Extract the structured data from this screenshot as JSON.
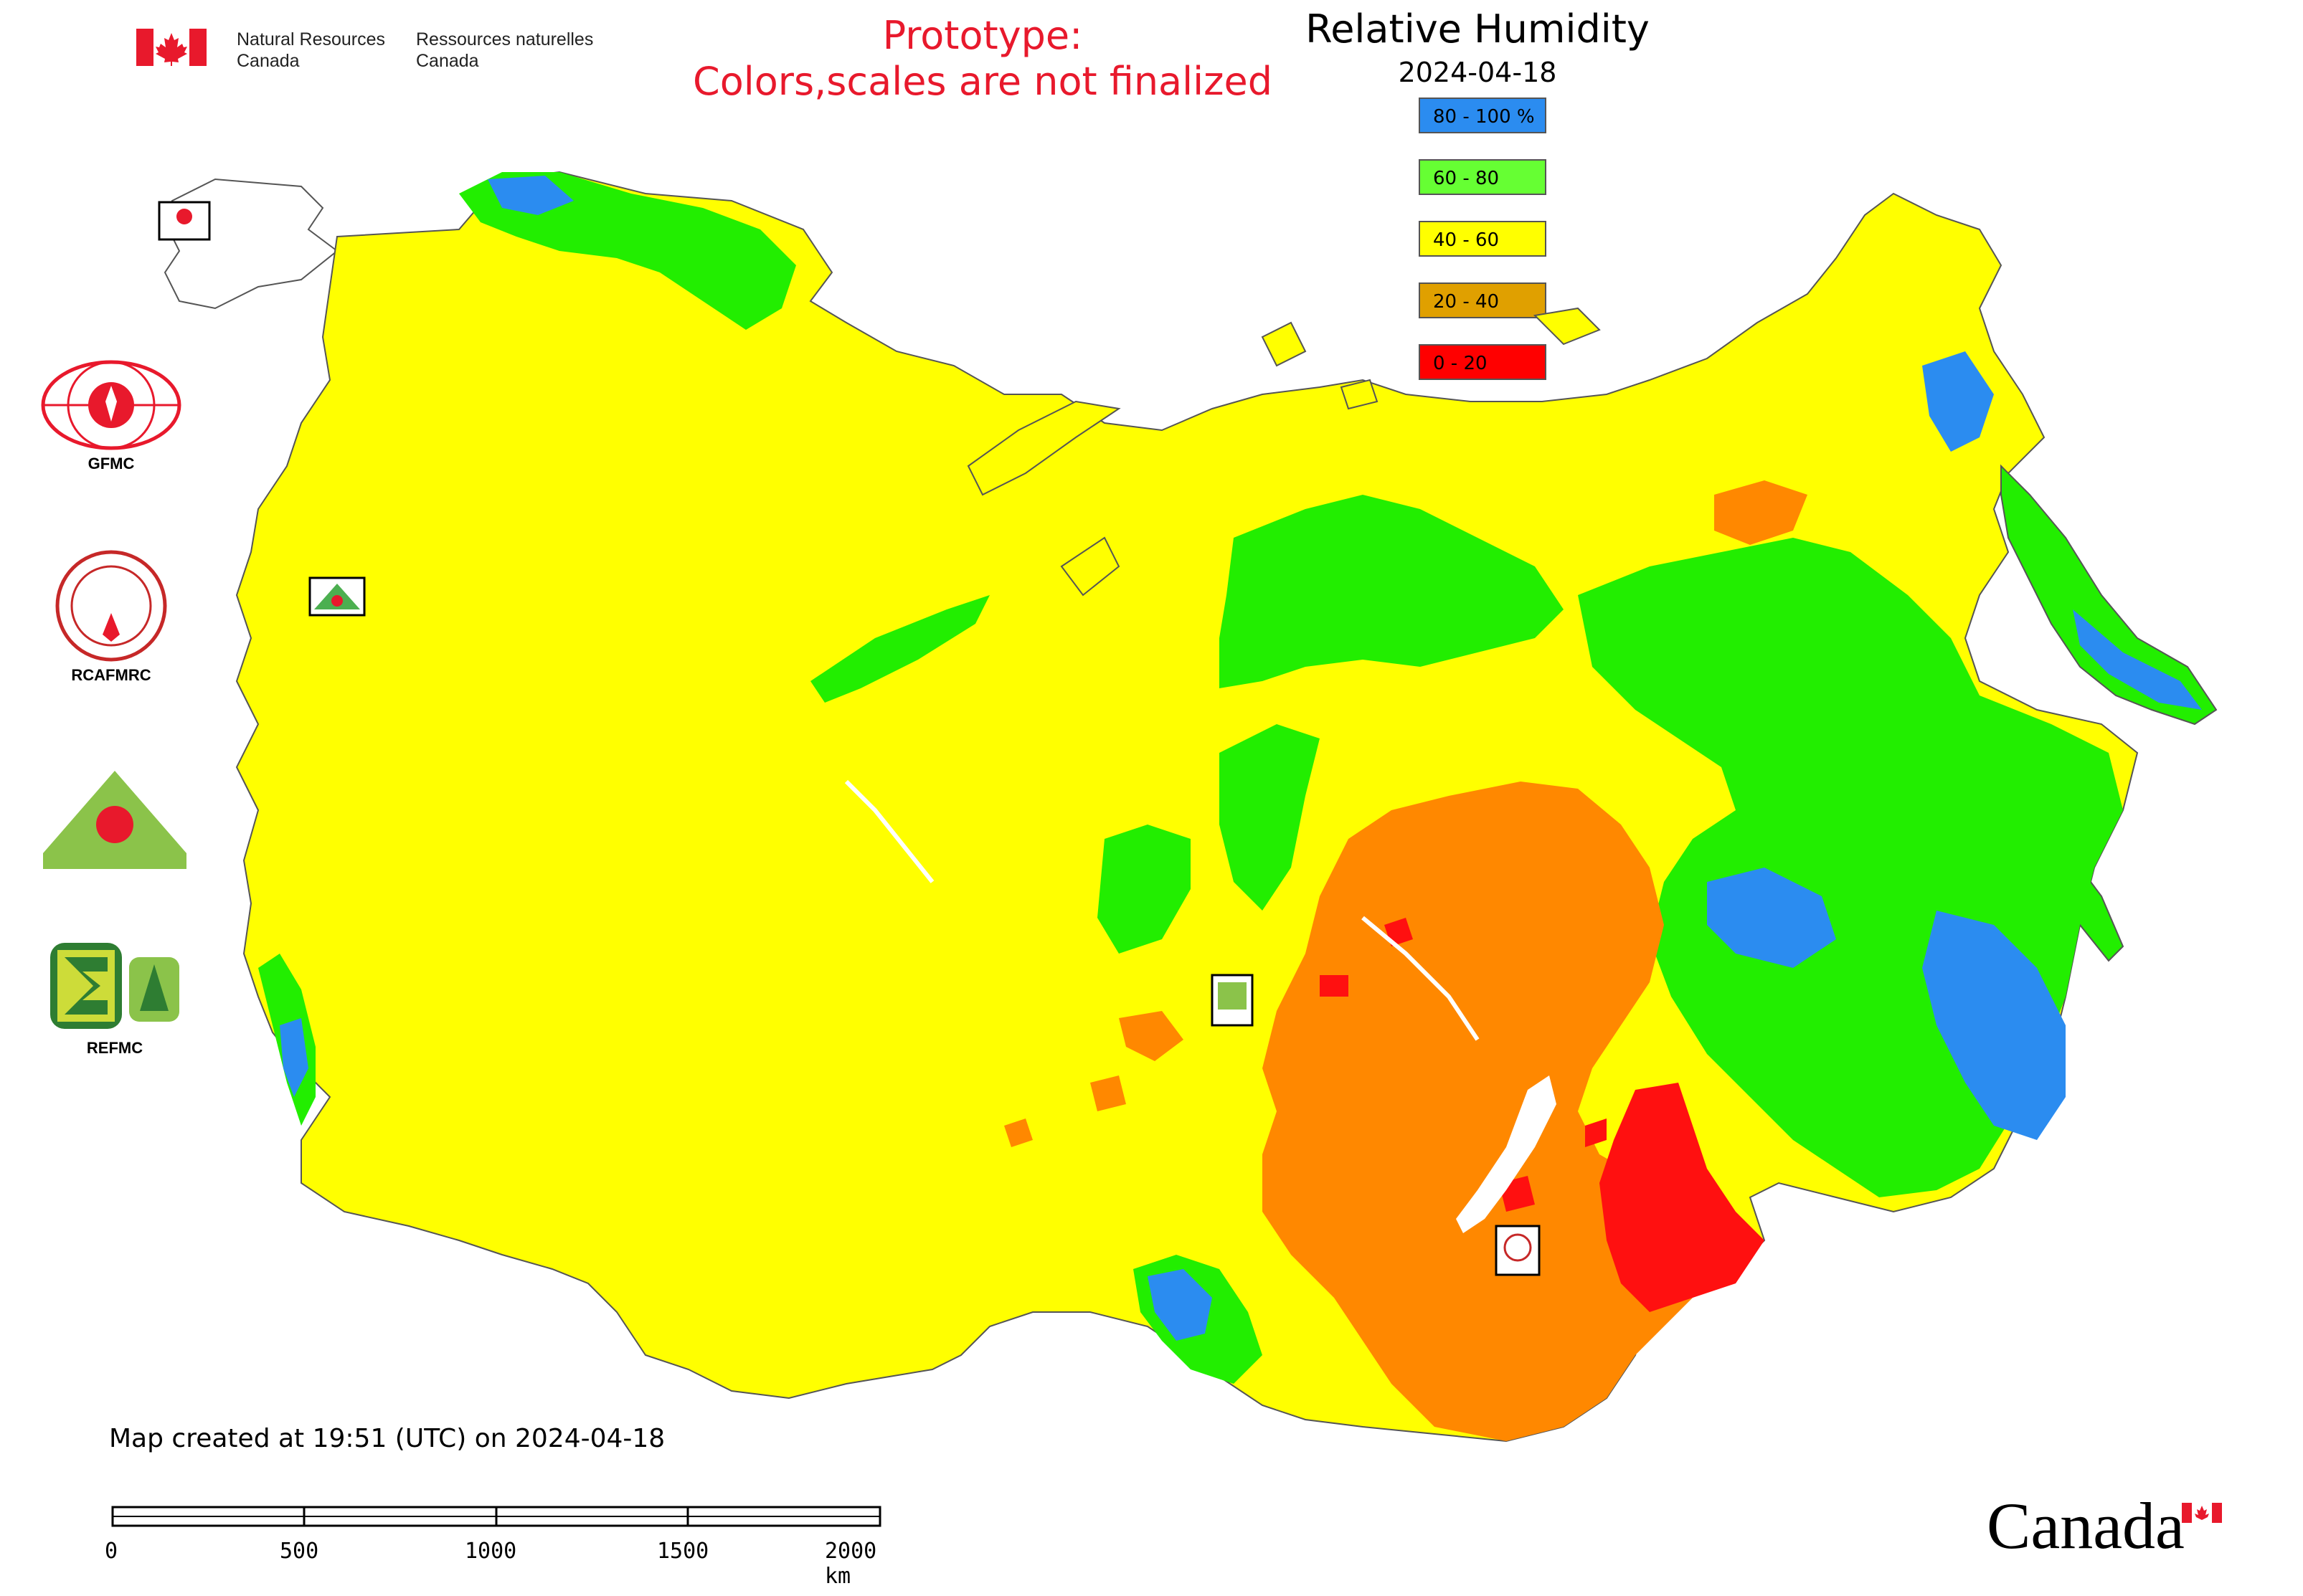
{
  "header": {
    "signature_en_line1": "Natural Resources",
    "signature_en_line2": "Canada",
    "signature_fr_line1": "Ressources naturelles",
    "signature_fr_line2": "Canada",
    "prototype_line1": "Prototype:",
    "prototype_line2": "Colors,scales are not finalized"
  },
  "title": "Relative Humidity",
  "date": "2024-04-18",
  "legend": [
    {
      "label": "80 - 100 %",
      "color": "#2b8cf0"
    },
    {
      "label": "60 - 80",
      "color": "#66ff33"
    },
    {
      "label": "40 - 60",
      "color": "#ffff00"
    },
    {
      "label": "20 - 40",
      "color": "#e0a000"
    },
    {
      "label": "0 - 20",
      "color": "#ff0000"
    }
  ],
  "map_colors": {
    "very_humid": "#2b8cf0",
    "humid": "#22ee00",
    "moderate": "#ffff00",
    "dry": "#ff8800",
    "very_dry": "#ff1010",
    "border": "#555555"
  },
  "logos": {
    "gfmc": "GFMC",
    "rcafmrc": "RCAFMRC",
    "reefmc_mark": "REEFMC",
    "refmc": "REFMC",
    "small_gfmc": "GFMC",
    "small_refmc": "REFMC",
    "small_rcafmrc": "RCAFMRC"
  },
  "footer": {
    "created": "Map created at 19:51 (UTC) on 2024-04-18",
    "scale_labels": [
      "0",
      "500",
      "1000",
      "1500",
      "2000 km"
    ],
    "wordmark": "Canada"
  }
}
